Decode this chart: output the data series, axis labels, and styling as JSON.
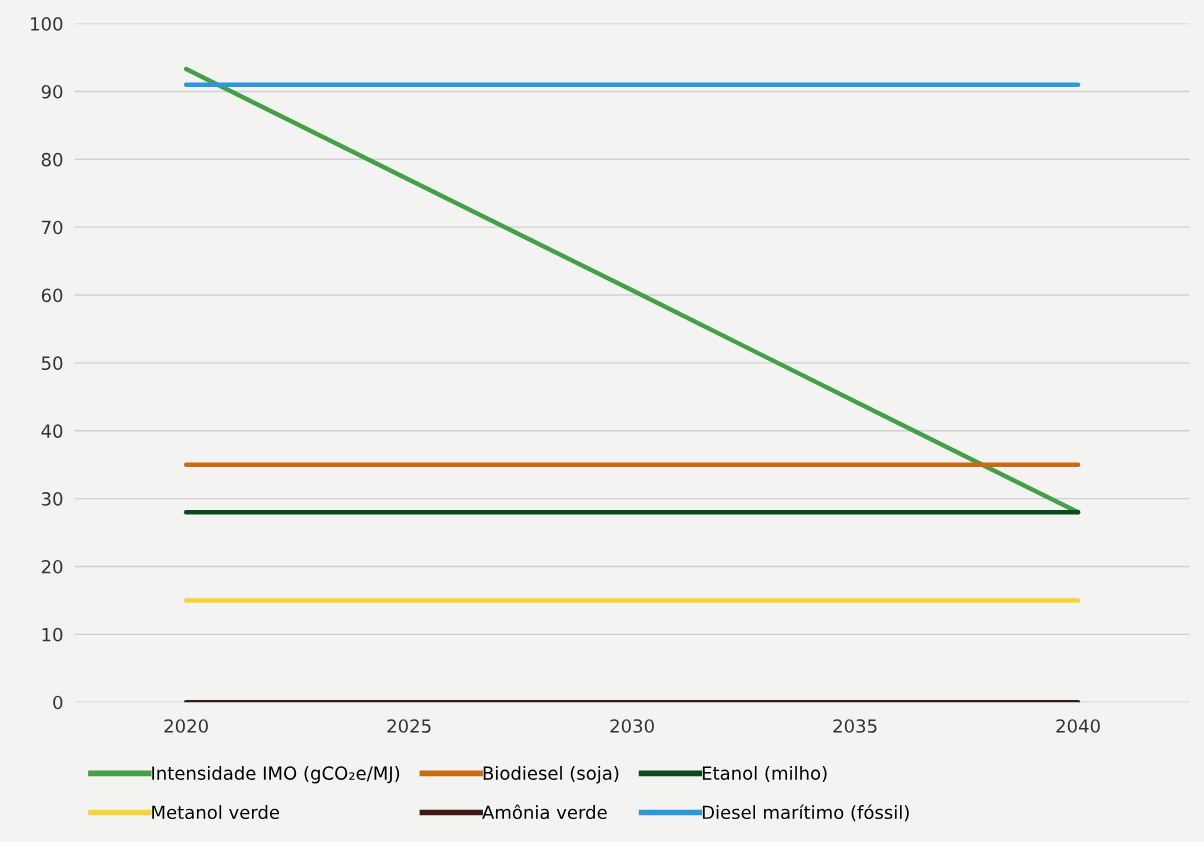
{
  "chart_data": {
    "type": "line",
    "categories": [
      "2020",
      "2025",
      "2030",
      "2035",
      "2040"
    ],
    "series": [
      {
        "name": "Intensidade IMO (gCO₂e/MJ)",
        "color": "#43a047",
        "values": [
          93.3,
          77,
          60.7,
          44.3,
          28
        ]
      },
      {
        "name": "Biodiesel (soja)",
        "color": "#cc6a12",
        "values": [
          35,
          35,
          35,
          35,
          35
        ]
      },
      {
        "name": "Etanol (milho)",
        "color": "#0b4a1e",
        "values": [
          28,
          28,
          28,
          28,
          28
        ]
      },
      {
        "name": "Metanol verde",
        "color": "#f5d33a",
        "values": [
          15,
          15,
          15,
          15,
          15
        ]
      },
      {
        "name": "Amônia verde",
        "color": "#3a1a14",
        "values": [
          0,
          0,
          0,
          0,
          0
        ]
      },
      {
        "name": "Diesel marítimo (fóssil)",
        "color": "#2e98d6",
        "values": [
          91,
          91,
          91,
          91,
          91
        ]
      }
    ],
    "ylim": [
      0,
      100
    ],
    "yticks": [
      0,
      10,
      20,
      30,
      40,
      50,
      60,
      70,
      80,
      90,
      100
    ],
    "grid": "y",
    "legend": "bottom",
    "marker": "none",
    "line_style": "solid"
  }
}
